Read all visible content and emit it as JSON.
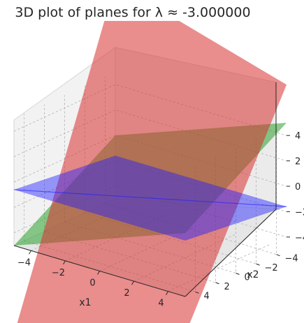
{
  "chart_data": {
    "type": "surface3d",
    "title": "3D plot of planes for λ ≈ -3.000000",
    "xlabel": "x1",
    "ylabel": "x2",
    "zlabel": "",
    "xlim": [
      -5,
      5
    ],
    "ylim": [
      -5,
      5
    ],
    "zlim": [
      -5,
      5
    ],
    "x_ticks": [
      -4,
      -2,
      0,
      2,
      4
    ],
    "y_ticks": [
      -4,
      -2,
      0,
      2,
      4
    ],
    "z_ticks": [
      -4,
      -2,
      0,
      2,
      4
    ],
    "grid": true,
    "planes": [
      {
        "name": "",
        "color": "#d9302f",
        "opacity": 0.55,
        "z_at_corners": [
          -12,
          -8,
          8,
          12
        ]
      },
      {
        "name": "",
        "color": "#2ca02c",
        "opacity": 0.55,
        "z_at_corners": [
          -5,
          0,
          5,
          0
        ]
      },
      {
        "name": "",
        "color": "#1f1fff",
        "opacity": 0.45,
        "z_at_corners": [
          -0.6,
          -0.6,
          -1.6,
          -1.6
        ]
      }
    ]
  }
}
